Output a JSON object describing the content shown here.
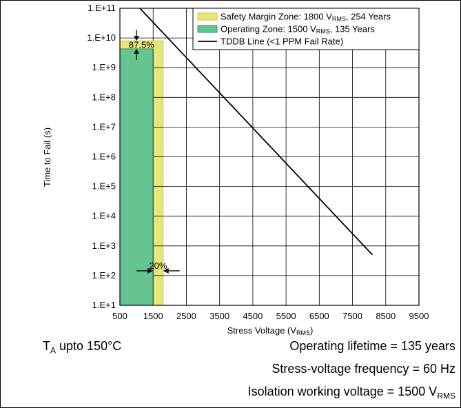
{
  "chart_data": {
    "type": "area",
    "x_scale": "linear",
    "y_scale": "log",
    "xlabel": "Stress Voltage (V",
    "xlabel_sub": "RMS",
    "xlabel_end": ")",
    "ylabel": "Time to Fail (s)",
    "xlim": [
      500,
      9500
    ],
    "ylim": [
      10,
      100000000000
    ],
    "grid": true,
    "legend_position": "top-right",
    "x_ticks": [
      "500",
      "1500",
      "2500",
      "3500",
      "4500",
      "5500",
      "6500",
      "7500",
      "8500",
      "9500"
    ],
    "y_ticks": [
      "1.E+1",
      "1.E+2",
      "1.E+3",
      "1.E+4",
      "1.E+5",
      "1.E+6",
      "1.E+7",
      "1.E+8",
      "1.E+9",
      "1.E+10",
      "1.E+11"
    ],
    "legend": [
      {
        "pre": "Safety Margin Zone: 1800 V",
        "sub": "RMS",
        "post": ", 254 Years",
        "color": "#E6E67A",
        "kind": "box"
      },
      {
        "pre": "Operating Zone: 1500 V",
        "sub": "RMS",
        "post": ", 135 Years",
        "color": "#66C490",
        "kind": "box"
      },
      {
        "pre": "TDDB Line (<1 PPM Fail Rate)",
        "sub": "",
        "post": "",
        "color": "#000000",
        "kind": "line"
      }
    ],
    "series": [
      {
        "name": "Safety Margin Zone",
        "x_start": 500,
        "x_end": 1800,
        "y_top": 8000000000,
        "color": "#E6E67A",
        "stroke": "#C8C840"
      },
      {
        "name": "Operating Zone",
        "x_start": 500,
        "x_end": 1500,
        "y_top": 4300000000,
        "color": "#66C490",
        "stroke": "#3C8F5E"
      },
      {
        "name": "TDDB Line",
        "points": [
          [
            1100,
            100000000000
          ],
          [
            8100,
            500
          ]
        ],
        "color": "#000000"
      }
    ],
    "annotations": [
      {
        "text": "87.5%",
        "x": 1150,
        "y": 6000000000
      },
      {
        "text": "20%",
        "x": 1650,
        "y": 200
      }
    ]
  },
  "notes": {
    "ta_pre": "T",
    "ta_sub": "A",
    "ta_post": " upto 150°C",
    "lifetime": "Operating lifetime = 135 years",
    "frequency": "Stress-voltage frequency = 60 Hz",
    "isolation_pre": "Isolation working voltage = 1500 V",
    "isolation_sub": "RMS"
  }
}
